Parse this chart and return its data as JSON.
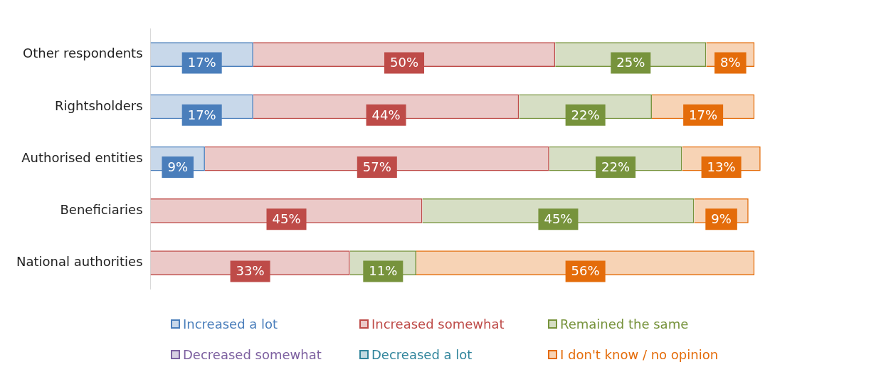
{
  "chart_data": {
    "type": "bar",
    "orientation": "horizontal",
    "stacked": true,
    "legend": "bottom",
    "categories": [
      "Other respondents",
      "Rightsholders",
      "Authorised entities",
      "Beneficiaries",
      "National authorities"
    ],
    "series": [
      {
        "name": "Increased a lot",
        "color": "#4a7ebb",
        "values": [
          17,
          17,
          9,
          null,
          null
        ],
        "value_labels": [
          "17%",
          "17%",
          "9%",
          null,
          null
        ]
      },
      {
        "name": "Increased somewhat",
        "color": "#be4b48",
        "values": [
          50,
          44,
          57,
          45,
          33
        ],
        "value_labels": [
          "50%",
          "44%",
          "57%",
          "45%",
          "33%"
        ]
      },
      {
        "name": "Remained the same",
        "color": "#77933c",
        "values": [
          25,
          22,
          22,
          45,
          11
        ],
        "value_labels": [
          "25%",
          "22%",
          "22%",
          "45%",
          "11%"
        ]
      },
      {
        "name": "Decreased somewhat",
        "color": "#7d60a0",
        "values": [
          null,
          null,
          null,
          null,
          null
        ]
      },
      {
        "name": "Decreased a lot",
        "color": "#31859c",
        "values": [
          null,
          null,
          null,
          null,
          null
        ]
      },
      {
        "name": "I don't know / no opinion",
        "color": "#e46c0a",
        "values": [
          8,
          17,
          13,
          9,
          56
        ],
        "value_labels": [
          "8%",
          "17%",
          "13%",
          "9%",
          "56%"
        ]
      }
    ]
  }
}
